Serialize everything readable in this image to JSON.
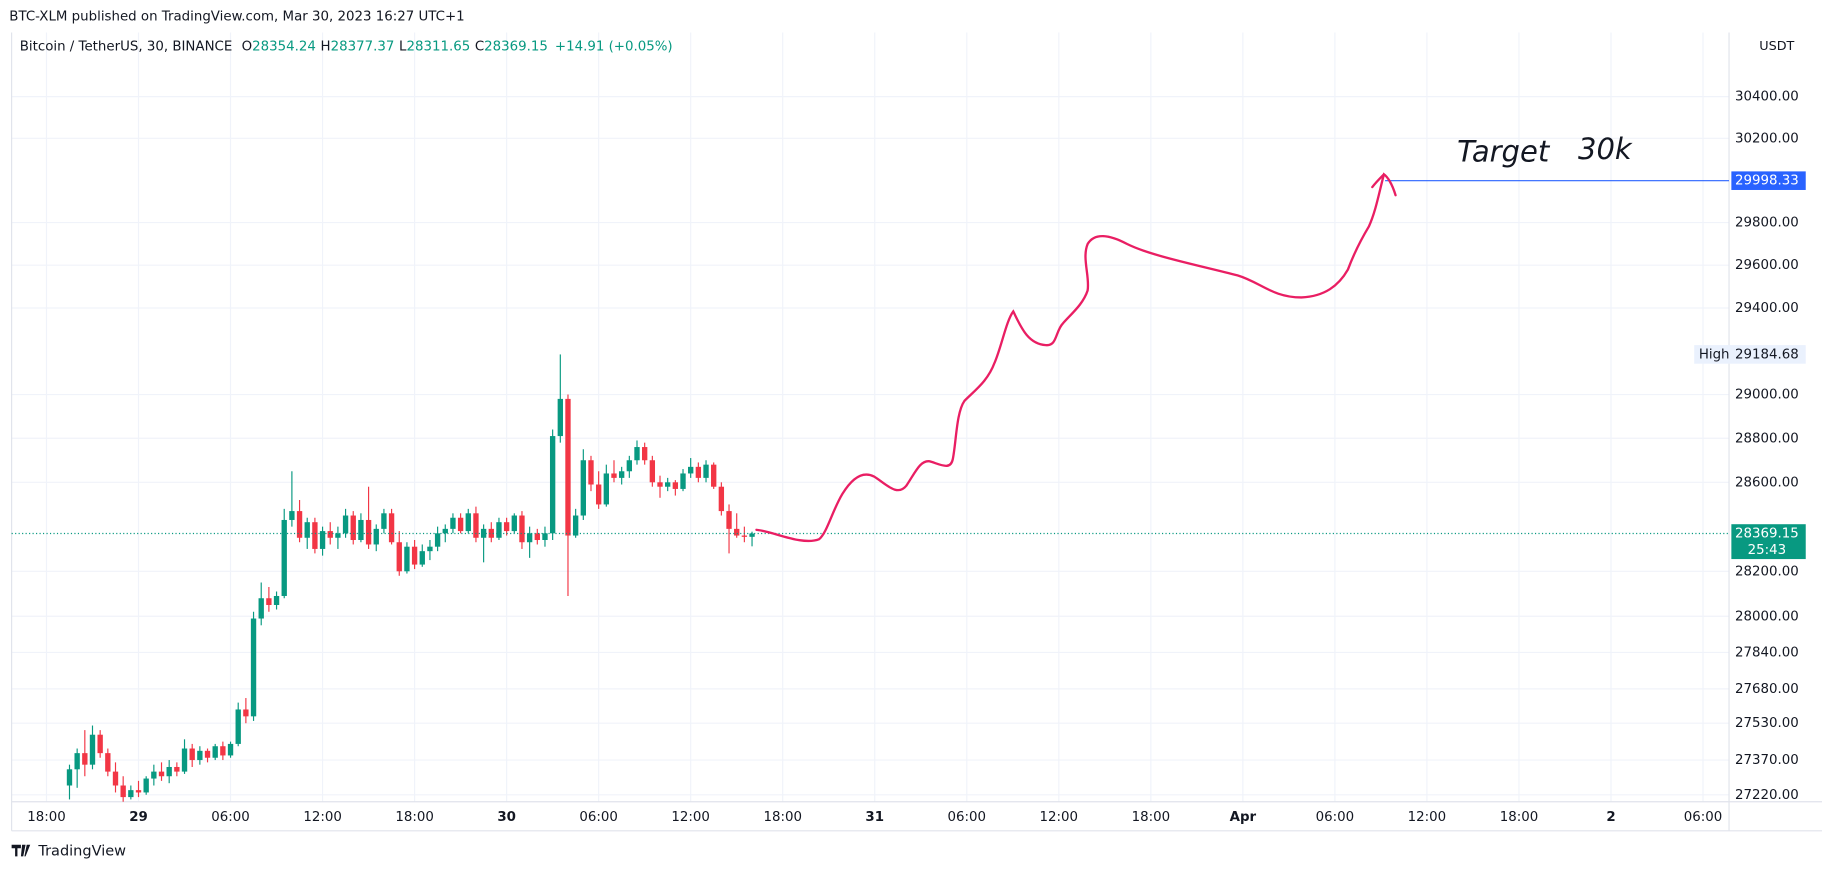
{
  "header": "BTC-XLM published on TradingView.com, Mar 30, 2023 16:27 UTC+1",
  "footer": "TradingView",
  "chart_data": {
    "type": "candlestick",
    "symbol": "Bitcoin / TetherUS, 30, BINANCE",
    "ohlc_prefixes": [
      "O",
      "H",
      "L",
      "C"
    ],
    "change": "+14.91 (+0.05%)",
    "currency": "USDT",
    "countdown": "25:43",
    "high_label": "High",
    "annotations": [
      "Target",
      "30k"
    ],
    "target_line": 29998.33,
    "up_color": "#089981",
    "down_color": "#f23645",
    "target_color": "#2962ff",
    "drawing_color": "#e91e63",
    "log": true,
    "grid": true,
    "ylim": [
      27190,
      30710
    ],
    "yticks": [
      {
        "value": 27220,
        "label": "27220.00"
      },
      {
        "value": 27370,
        "label": "27370.00"
      },
      {
        "value": 27530,
        "label": "27530.00"
      },
      {
        "value": 27680,
        "label": "27680.00"
      },
      {
        "value": 27840,
        "label": "27840.00"
      },
      {
        "value": 28000,
        "label": "28000.00"
      },
      {
        "value": 28200,
        "label": "28200.00"
      },
      {
        "value": 28600,
        "label": "28600.00"
      },
      {
        "value": 28800,
        "label": "28800.00"
      },
      {
        "value": 29000,
        "label": "29000.00"
      },
      {
        "value": 29400,
        "label": "29400.00"
      },
      {
        "value": 29600,
        "label": "29600.00"
      },
      {
        "value": 29800,
        "label": "29800.00"
      },
      {
        "value": 30200,
        "label": "30200.00"
      },
      {
        "value": 30400,
        "label": "30400.00"
      }
    ],
    "xticks": [
      "18:00",
      "29",
      "06:00",
      "12:00",
      "18:00",
      "30",
      "06:00",
      "12:00",
      "18:00",
      "31",
      "06:00",
      "12:00",
      "18:00",
      "Apr",
      "06:00",
      "12:00",
      "18:00",
      "2",
      "06:00"
    ],
    "open": [
      27260,
      27330,
      27400,
      27350,
      27480,
      27400,
      27320,
      27260,
      27210,
      27240,
      27230,
      27290,
      27320,
      27300,
      27340,
      27320,
      27420,
      27370,
      27410,
      27380,
      27430,
      27390,
      27440,
      27590,
      27560,
      27990,
      28080,
      28050,
      28090,
      28430,
      28470,
      28350,
      28420,
      28300,
      28380,
      28350,
      28370,
      28450,
      28340,
      28430,
      28320,
      28390,
      28460,
      28330,
      28200,
      28310,
      28230,
      28290,
      28310,
      28370,
      28390,
      28440,
      28380,
      28460,
      28350,
      28390,
      28350,
      28420,
      28380,
      28450,
      28330,
      28370,
      28340,
      28370,
      28810,
      28980,
      28360,
      28450,
      28700,
      28590,
      28500,
      28640,
      28620,
      28650,
      28700,
      28760,
      28700,
      28600,
      28580,
      28600,
      28570,
      28640,
      28670,
      28620,
      28680,
      28580,
      28470,
      28390,
      28360,
      28354.24
    ],
    "high": [
      27350,
      27420,
      27500,
      27520,
      27500,
      27420,
      27360,
      27300,
      27260,
      27280,
      27300,
      27350,
      27360,
      27370,
      27360,
      27460,
      27440,
      27430,
      27420,
      27440,
      27450,
      27450,
      27620,
      27640,
      28020,
      28150,
      28130,
      28110,
      28480,
      28650,
      28520,
      28440,
      28440,
      28400,
      28420,
      28400,
      28480,
      28470,
      28460,
      28580,
      28410,
      28480,
      28480,
      28380,
      28330,
      28340,
      28320,
      28340,
      28400,
      28410,
      28460,
      28460,
      28480,
      28490,
      28410,
      28420,
      28440,
      28440,
      28460,
      28470,
      28400,
      28390,
      28400,
      28840,
      29184.68,
      29000,
      28480,
      28750,
      28720,
      28650,
      28680,
      28700,
      28670,
      28720,
      28790,
      28780,
      28720,
      28630,
      28620,
      28610,
      28660,
      28710,
      28690,
      28700,
      28690,
      28600,
      28500,
      28460,
      28400,
      28377.37
    ],
    "low": [
      27200,
      27250,
      27300,
      27330,
      27380,
      27300,
      27230,
      27190,
      27200,
      27210,
      27220,
      27260,
      27280,
      27270,
      27300,
      27310,
      27340,
      27350,
      27360,
      27370,
      27370,
      27380,
      27430,
      27530,
      27540,
      27960,
      28020,
      28030,
      28080,
      28400,
      28330,
      28300,
      28280,
      28270,
      28320,
      28300,
      28350,
      28320,
      28330,
      28300,
      28290,
      28370,
      28320,
      28180,
      28190,
      28210,
      28220,
      28250,
      28290,
      28330,
      28370,
      28370,
      28370,
      28330,
      28240,
      28330,
      28340,
      28360,
      28370,
      28300,
      28260,
      28320,
      28310,
      28340,
      28780,
      28090,
      28350,
      28430,
      28560,
      28480,
      28490,
      28600,
      28590,
      28620,
      28680,
      28680,
      28580,
      28530,
      28560,
      28540,
      28560,
      28620,
      28600,
      28600,
      28570,
      28450,
      28280,
      28350,
      28330,
      28311.65
    ],
    "close": [
      27330,
      27400,
      27350,
      27480,
      27400,
      27320,
      27260,
      27210,
      27240,
      27230,
      27290,
      27320,
      27300,
      27340,
      27320,
      27420,
      27370,
      27410,
      27380,
      27430,
      27390,
      27440,
      27590,
      27560,
      27990,
      28080,
      28050,
      28090,
      28430,
      28470,
      28350,
      28420,
      28300,
      28380,
      28350,
      28370,
      28450,
      28340,
      28430,
      28320,
      28390,
      28460,
      28330,
      28200,
      28310,
      28230,
      28290,
      28310,
      28370,
      28390,
      28440,
      28380,
      28460,
      28350,
      28390,
      28350,
      28420,
      28380,
      28450,
      28330,
      28370,
      28340,
      28370,
      28810,
      28980,
      28360,
      28450,
      28700,
      28590,
      28500,
      28640,
      28620,
      28650,
      28700,
      28760,
      28700,
      28600,
      28580,
      28600,
      28570,
      28640,
      28670,
      28620,
      28680,
      28580,
      28470,
      28390,
      28360,
      28354.24,
      28369.15
    ]
  }
}
